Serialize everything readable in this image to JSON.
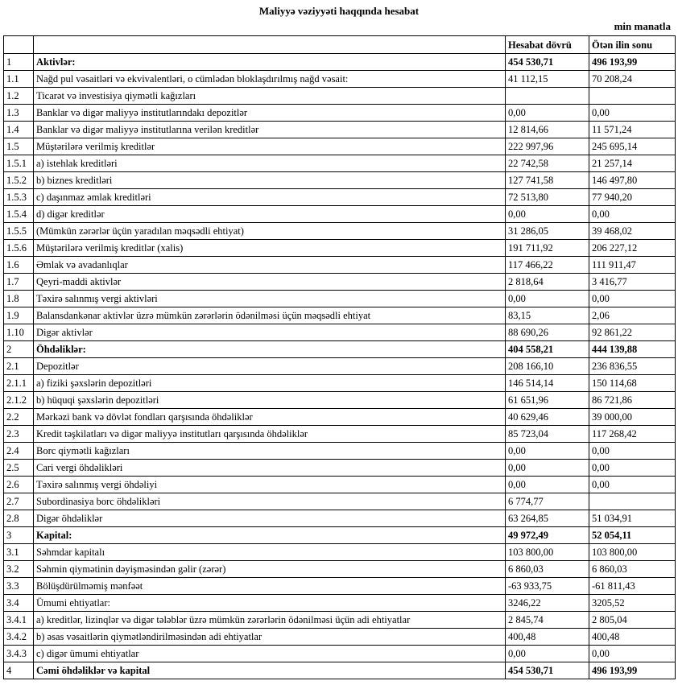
{
  "title": "Maliyyə vəziyyəti haqqında hesabat",
  "unit": "min manatla",
  "columns": [
    "",
    "",
    "Hesabat dövrü",
    "Ötən ilin sonu"
  ],
  "rows": [
    {
      "num": "1",
      "label": "Aktivlər:",
      "current": "454 530,71",
      "previous": "496 193,99",
      "bold": true
    },
    {
      "num": "1.1",
      "label": "Nağd pul vəsaitləri və ekvivalentləri, o cümlədən bloklaşdırılmış nağd vəsait:",
      "current": "41 112,15",
      "previous": "70 208,24"
    },
    {
      "num": "1.2",
      "label": "Ticarət və investisiya qiymətli kağızları",
      "current": "",
      "previous": ""
    },
    {
      "num": "1.3",
      "label": "Banklar və digər maliyyə institutlarındakı depozitlər",
      "current": "0,00",
      "previous": "0,00"
    },
    {
      "num": "1.4",
      "label": "Banklar və digər maliyyə institutlarına verilən kreditlər",
      "current": "12 814,66",
      "previous": "11 571,24"
    },
    {
      "num": "1.5",
      "label": "Müştərilərə verilmiş kreditlər",
      "current": "222 997,96",
      "previous": "245 695,14"
    },
    {
      "num": "1.5.1",
      "label": "a) istehlak kreditləri",
      "current": "22 742,58",
      "previous": "21 257,14"
    },
    {
      "num": "1.5.2",
      "label": "b) biznes kreditləri",
      "current": "127 741,58",
      "previous": "146 497,80"
    },
    {
      "num": "1.5.3",
      "label": "c) daşınmaz əmlak kreditləri",
      "current": "72 513,80",
      "previous": "77 940,20"
    },
    {
      "num": "1.5.4",
      "label": "d) digər kreditlər",
      "current": "0,00",
      "previous": "0,00"
    },
    {
      "num": "1.5.5",
      "label": "(Mümkün zərərlər üçün yaradılan məqsədli ehtiyat)",
      "current": "31 286,05",
      "previous": "39 468,02"
    },
    {
      "num": "1.5.6",
      "label": "Müştərilərə verilmiş kreditlər (xalis)",
      "current": "191 711,92",
      "previous": "206 227,12"
    },
    {
      "num": "1.6",
      "label": "Əmlak və avadanlıqlar",
      "current": "117 466,22",
      "previous": "111 911,47"
    },
    {
      "num": "1.7",
      "label": "Qeyri-maddi aktivlər",
      "current": "2 818,64",
      "previous": "3 416,77"
    },
    {
      "num": "1.8",
      "label": "Təxirə salınmış vergi aktivləri",
      "current": "0,00",
      "previous": "0,00"
    },
    {
      "num": "1.9",
      "label": "Balansdankənar aktivlər üzrə mümkün zərərlərin ödənilməsi üçün məqsədli ehtiyat",
      "current": "83,15",
      "previous": "2,06"
    },
    {
      "num": "1.10",
      "label": "Digər aktivlər",
      "current": "88 690,26",
      "previous": "92 861,22"
    },
    {
      "num": "2",
      "label": "Öhdəliklər:",
      "current": "404 558,21",
      "previous": "444 139,88",
      "bold": true
    },
    {
      "num": "2.1",
      "label": "Depozitlər",
      "current": "208 166,10",
      "previous": "236 836,55"
    },
    {
      "num": "2.1.1",
      "label": "a) fiziki şəxslərin depozitləri",
      "current": "146 514,14",
      "previous": "150 114,68"
    },
    {
      "num": "2.1.2",
      "label": "b) hüquqi şəxslərin depozitləri",
      "current": "61 651,96",
      "previous": "86 721,86"
    },
    {
      "num": "2.2",
      "label": "Mərkəzi bank və dövlət fondları qarşısında öhdəliklər",
      "current": "40 629,46",
      "previous": "39 000,00"
    },
    {
      "num": "2.3",
      "label": "Kredit təşkilatları və digər maliyyə institutları qarşısında öhdəliklər",
      "current": "85 723,04",
      "previous": "117 268,42"
    },
    {
      "num": "2.4",
      "label": "Borc qiymətli kağızları",
      "current": "0,00",
      "previous": "0,00"
    },
    {
      "num": "2.5",
      "label": "Cari vergi öhdəlikləri",
      "current": "0,00",
      "previous": "0,00"
    },
    {
      "num": "2.6",
      "label": "Təxirə salınmış vergi öhdəliyi",
      "current": "0,00",
      "previous": "0,00"
    },
    {
      "num": "2.7",
      "label": "Subordinasiya borc öhdəlikləri",
      "current": "6 774,77",
      "previous": ""
    },
    {
      "num": "2.8",
      "label": "Digər öhdəliklər",
      "current": "63 264,85",
      "previous": "51 034,91"
    },
    {
      "num": "3",
      "label": "Kapital:",
      "current": "49 972,49",
      "previous": "52 054,11",
      "bold": true
    },
    {
      "num": "3.1",
      "label": "Səhmdar kapitalı",
      "current": "103 800,00",
      "previous": "103 800,00"
    },
    {
      "num": "3.2",
      "label": "Səhmin qiymətinin dəyişməsindən gəlir (zərər)",
      "current": "6 860,03",
      "previous": "6 860,03"
    },
    {
      "num": "3.3",
      "label": "Bölüşdürülməmiş mənfəət",
      "current": "-63 933,75",
      "previous": "-61 811,43"
    },
    {
      "num": "3.4",
      "label": "Ümumi ehtiyatlar:",
      "current": "3246,22",
      "previous": "3205,52"
    },
    {
      "num": "3.4.1",
      "label": "a) kreditlər, lizinqlər və digər tələblər üzrə mümkün zərərlərin ödənilməsi üçün adi ehtiyatlar",
      "current": "2 845,74",
      "previous": "2 805,04"
    },
    {
      "num": "3.4.2",
      "label": "b) əsas vəsaitlərin qiymətləndirilməsindən adi ehtiyatlar",
      "current": "400,48",
      "previous": "400,48"
    },
    {
      "num": "3.4.3",
      "label": "c) digər ümumi ehtiyatlar",
      "current": "0,00",
      "previous": "0,00"
    },
    {
      "num": "4",
      "label": "Cəmi öhdəliklər və kapital",
      "current": "454 530,71",
      "previous": "496 193,99",
      "bold": true
    }
  ]
}
